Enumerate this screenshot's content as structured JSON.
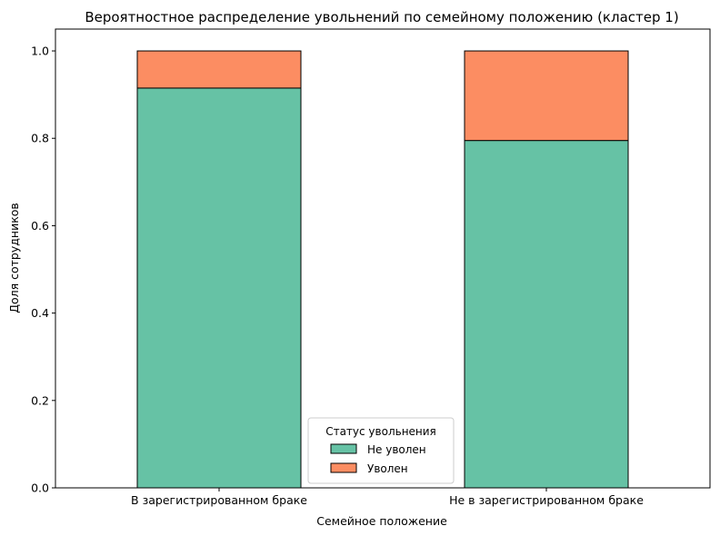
{
  "chart_data": {
    "type": "bar",
    "stacked": true,
    "title": "Вероятностное распределение увольнений по семейному положению (кластер 1)",
    "xlabel": "Семейное положение",
    "ylabel": "Доля сотрудников",
    "categories": [
      "В зарегистрированном браке",
      "Не в зарегистрированном браке"
    ],
    "series": [
      {
        "name": "Не уволен",
        "values": [
          0.915,
          0.795
        ],
        "color": "#66c2a5"
      },
      {
        "name": "Уволен",
        "values": [
          0.085,
          0.205
        ],
        "color": "#fc8d62"
      }
    ],
    "ylim": [
      0,
      1.05
    ],
    "yticks": [
      0.0,
      0.2,
      0.4,
      0.6,
      0.8,
      1.0
    ],
    "ytick_labels": [
      "0.0",
      "0.2",
      "0.4",
      "0.6",
      "0.8",
      "1.0"
    ],
    "grid": false,
    "legend": {
      "title": "Статус увольнения",
      "placement": "lower-center"
    }
  }
}
